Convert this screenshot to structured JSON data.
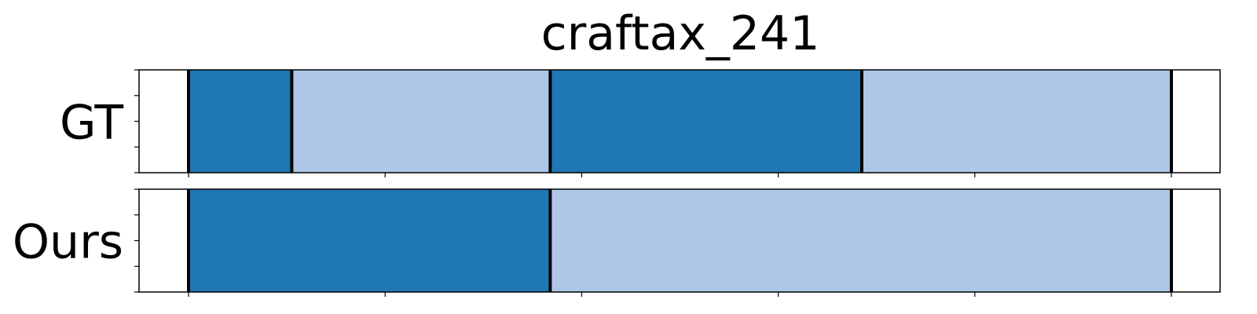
{
  "chart_data": {
    "type": "segmentation-timeline",
    "title": "craftax_241",
    "x_range": [
      0,
      1
    ],
    "y_range": [
      0,
      1
    ],
    "x_ticks": [
      0.0,
      0.2,
      0.4,
      0.6,
      0.8,
      1.0
    ],
    "y_ticks": [
      0.0,
      0.25,
      0.5,
      0.75,
      1.0
    ],
    "grid": false,
    "legend": "none",
    "colors": {
      "dark": "#1f77b4",
      "light": "#aec7e8",
      "boundary": "#000000",
      "background": "#ffffff"
    },
    "rows": [
      {
        "label": "GT",
        "segments": [
          {
            "start": 0.0,
            "end": 0.105,
            "color": "dark"
          },
          {
            "start": 0.105,
            "end": 0.368,
            "color": "light"
          },
          {
            "start": 0.368,
            "end": 0.685,
            "color": "dark"
          },
          {
            "start": 0.685,
            "end": 1.0,
            "color": "light"
          }
        ]
      },
      {
        "label": "Ours",
        "segments": [
          {
            "start": 0.0,
            "end": 0.368,
            "color": "dark"
          },
          {
            "start": 0.368,
            "end": 1.0,
            "color": "light"
          }
        ]
      }
    ]
  }
}
